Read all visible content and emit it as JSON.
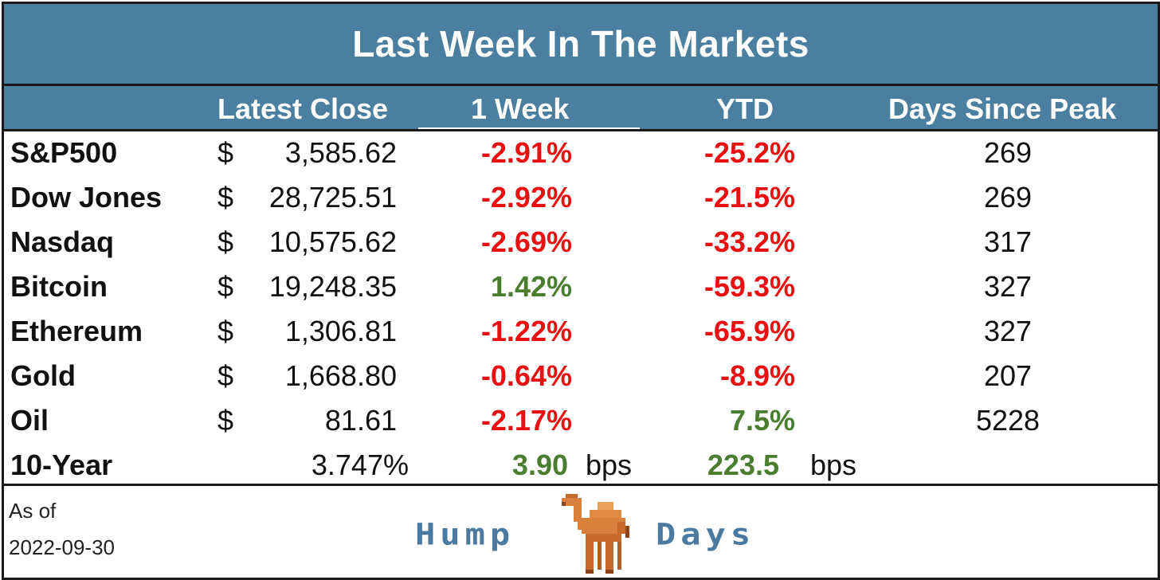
{
  "title": "Last Week In The Markets",
  "columns": {
    "close": "Latest Close",
    "week": "1 Week",
    "ytd": "YTD",
    "peak": "Days Since Peak"
  },
  "rows": [
    {
      "name": "S&P500",
      "dollar": "$",
      "close": "3,585.62",
      "week": "-2.91%",
      "ytd": "-25.2%",
      "peak": "269"
    },
    {
      "name": "Dow Jones",
      "dollar": "$",
      "close": "28,725.51",
      "week": "-2.92%",
      "ytd": "-21.5%",
      "peak": "269"
    },
    {
      "name": "Nasdaq",
      "dollar": "$",
      "close": "10,575.62",
      "week": "-2.69%",
      "ytd": "-33.2%",
      "peak": "317"
    },
    {
      "name": "Bitcoin",
      "dollar": "$",
      "close": "19,248.35",
      "week": "1.42%",
      "ytd": "-59.3%",
      "peak": "327"
    },
    {
      "name": "Ethereum",
      "dollar": "$",
      "close": "1,306.81",
      "week": "-1.22%",
      "ytd": "-65.9%",
      "peak": "327"
    },
    {
      "name": "Gold",
      "dollar": "$",
      "close": "1,668.80",
      "week": "-0.64%",
      "ytd": "-8.9%",
      "peak": "207"
    },
    {
      "name": "Oil",
      "dollar": "$",
      "close": "81.61",
      "week": "-2.17%",
      "ytd": "7.5%",
      "peak": "5228"
    }
  ],
  "ten_year": {
    "name": "10-Year",
    "close": "3.747%",
    "week": "3.90",
    "week_unit": "bps",
    "ytd": "223.5",
    "ytd_unit": "bps"
  },
  "footer": {
    "asof_label": "As of",
    "asof_date": "2022-09-30",
    "logo_word_1": "Hump",
    "logo_word_2": "Days",
    "logo_icon": "camel-icon"
  },
  "colors": {
    "header_bg": "#4a7fa0",
    "negative": "#e81010",
    "positive": "#4a7d2e",
    "logo": "#4a7aa0"
  }
}
